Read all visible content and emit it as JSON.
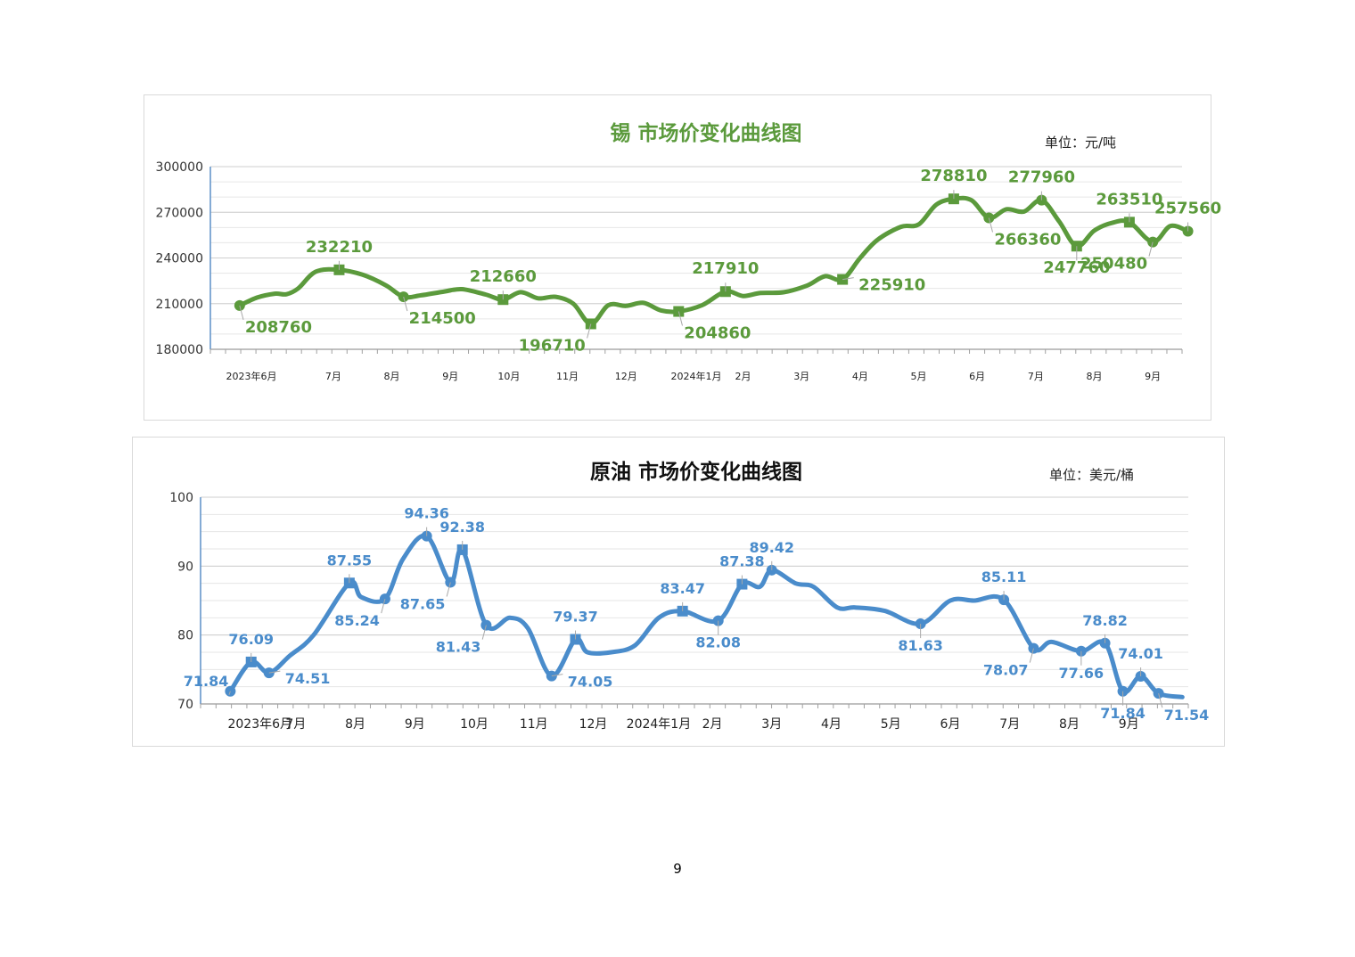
{
  "page": {
    "number": "9"
  },
  "chart_data": [
    {
      "type": "line",
      "title": "锡 市场价变化曲线图",
      "unit": "单位：元/吨",
      "color": "#5b9a3c",
      "ylim": [
        180000,
        300000
      ],
      "yticks": [
        "300000",
        "270000",
        "240000",
        "210000",
        "180000"
      ],
      "ytick_values": [
        300000,
        270000,
        240000,
        210000,
        180000
      ],
      "xtick_labels": [
        {
          "label": "2023年6月",
          "x": 0.7
        },
        {
          "label": "7月",
          "x": 2.1
        },
        {
          "label": "8月",
          "x": 3.1
        },
        {
          "label": "9月",
          "x": 4.1
        },
        {
          "label": "10月",
          "x": 5.1
        },
        {
          "label": "11月",
          "x": 6.1
        },
        {
          "label": "12月",
          "x": 7.1
        },
        {
          "label": "2024年1月",
          "x": 8.3
        },
        {
          "label": "2月",
          "x": 9.1
        },
        {
          "label": "3月",
          "x": 10.1
        },
        {
          "label": "4月",
          "x": 11.1
        },
        {
          "label": "5月",
          "x": 12.1
        },
        {
          "label": "6月",
          "x": 13.1
        },
        {
          "label": "7月",
          "x": 14.1
        },
        {
          "label": "8月",
          "x": 15.1
        },
        {
          "label": "9月",
          "x": 16.1
        }
      ],
      "x_range": [
        0,
        16.6
      ],
      "grid": true,
      "series": [
        {
          "x": [
            0.5,
            0.8,
            1.1,
            1.3,
            1.5,
            1.8,
            2.2,
            2.6,
            3.0,
            3.3,
            3.6,
            4.0,
            4.3,
            4.7,
            5.0,
            5.3,
            5.6,
            5.9,
            6.2,
            6.5,
            6.8,
            7.1,
            7.4,
            7.7,
            8.0,
            8.4,
            8.8,
            9.1,
            9.4,
            9.8,
            10.2,
            10.5,
            10.8,
            11.1,
            11.4,
            11.8,
            12.1,
            12.4,
            12.7,
            13.0,
            13.3,
            13.6,
            13.9,
            14.2,
            14.5,
            14.8,
            15.1,
            15.4,
            15.7,
            16.1,
            16.4,
            16.7
          ],
          "values": [
            208760,
            214000,
            216500,
            216200,
            220000,
            231000,
            232210,
            229000,
            222000,
            214500,
            215500,
            218000,
            219500,
            216000,
            212660,
            217500,
            213500,
            214500,
            210000,
            196710,
            209000,
            208500,
            210500,
            205500,
            204860,
            209000,
            217910,
            215000,
            217000,
            217500,
            222000,
            228000,
            225910,
            240000,
            252000,
            260500,
            262000,
            275000,
            278810,
            278000,
            266360,
            272000,
            270500,
            277960,
            264000,
            247760,
            258000,
            263000,
            263510,
            250480,
            261000,
            257560
          ],
          "markers": [
            {
              "x": 0.5,
              "y": 208760,
              "shape": "circle",
              "label": "208760",
              "anchor": "below-right"
            },
            {
              "x": 2.2,
              "y": 232210,
              "shape": "square",
              "label": "232210",
              "anchor": "above"
            },
            {
              "x": 3.3,
              "y": 214500,
              "shape": "circle",
              "label": "214500",
              "anchor": "below-right"
            },
            {
              "x": 5.0,
              "y": 212660,
              "shape": "square",
              "label": "212660",
              "anchor": "above"
            },
            {
              "x": 6.5,
              "y": 196710,
              "shape": "square",
              "label": "196710",
              "anchor": "below-left"
            },
            {
              "x": 8.0,
              "y": 204860,
              "shape": "square",
              "label": "204860",
              "anchor": "below-right"
            },
            {
              "x": 8.8,
              "y": 217910,
              "shape": "square",
              "label": "217910",
              "anchor": "above"
            },
            {
              "x": 10.8,
              "y": 225910,
              "shape": "square",
              "label": "225910",
              "anchor": "right"
            },
            {
              "x": 12.7,
              "y": 278810,
              "shape": "square",
              "label": "278810",
              "anchor": "above"
            },
            {
              "x": 13.3,
              "y": 266360,
              "shape": "circle",
              "label": "266360",
              "anchor": "below-right"
            },
            {
              "x": 14.2,
              "y": 277960,
              "shape": "circle",
              "label": "277960",
              "anchor": "above"
            },
            {
              "x": 14.8,
              "y": 247760,
              "shape": "square",
              "label": "247760",
              "anchor": "below"
            },
            {
              "x": 15.7,
              "y": 263510,
              "shape": "square",
              "label": "263510",
              "anchor": "above"
            },
            {
              "x": 16.1,
              "y": 250480,
              "shape": "circle",
              "label": "250480",
              "anchor": "below-left"
            },
            {
              "x": 16.7,
              "y": 257560,
              "shape": "circle",
              "label": "257560",
              "anchor": "above"
            }
          ]
        }
      ]
    },
    {
      "type": "line",
      "title": "原油 市场价变化曲线图",
      "unit": "单位：美元/桶",
      "color": "#4a8ccb",
      "ylim": [
        70,
        100
      ],
      "yticks": [
        "100",
        "90",
        "80",
        "70"
      ],
      "ytick_values": [
        100,
        90,
        80,
        70
      ],
      "xtick_labels": [
        {
          "label": "2023年6月",
          "x": 1.0
        },
        {
          "label": "7月",
          "x": 1.6
        },
        {
          "label": "8月",
          "x": 2.6
        },
        {
          "label": "9月",
          "x": 3.6
        },
        {
          "label": "10月",
          "x": 4.6
        },
        {
          "label": "11月",
          "x": 5.6
        },
        {
          "label": "12月",
          "x": 6.6
        },
        {
          "label": "2024年1月",
          "x": 7.7
        },
        {
          "label": "2月",
          "x": 8.6
        },
        {
          "label": "3月",
          "x": 9.6
        },
        {
          "label": "4月",
          "x": 10.6
        },
        {
          "label": "5月",
          "x": 11.6
        },
        {
          "label": "6月",
          "x": 12.6
        },
        {
          "label": "7月",
          "x": 13.6
        },
        {
          "label": "8月",
          "x": 14.6
        },
        {
          "label": "9月",
          "x": 15.6
        }
      ],
      "x_range": [
        0,
        16.6
      ],
      "grid": true,
      "series": [
        {
          "x": [
            0.5,
            0.85,
            1.15,
            1.5,
            1.9,
            2.5,
            2.7,
            3.1,
            3.4,
            3.8,
            4.2,
            4.4,
            4.8,
            5.2,
            5.5,
            5.9,
            6.3,
            6.5,
            6.9,
            7.3,
            7.7,
            8.1,
            8.7,
            9.1,
            9.4,
            9.6,
            10.0,
            10.3,
            10.7,
            11.0,
            11.5,
            12.1,
            12.6,
            13.0,
            13.5,
            14.0,
            14.3,
            14.8,
            15.2,
            15.5,
            15.8,
            16.1,
            16.5
          ],
          "values": [
            71.84,
            76.09,
            74.51,
            77.0,
            80.0,
            87.55,
            85.5,
            85.24,
            91.0,
            94.36,
            87.65,
            92.38,
            81.43,
            82.5,
            81.0,
            74.05,
            79.37,
            77.5,
            77.5,
            78.5,
            82.5,
            83.47,
            82.08,
            87.38,
            87.0,
            89.42,
            87.5,
            87.0,
            84.0,
            84.0,
            83.5,
            81.63,
            85.0,
            85.0,
            85.11,
            78.07,
            79.0,
            77.66,
            78.82,
            71.84,
            74.01,
            71.54,
            71.0
          ],
          "markers": [
            {
              "x": 0.5,
              "y": 71.84,
              "shape": "circle",
              "label": "71.84",
              "anchor": "above-left"
            },
            {
              "x": 0.85,
              "y": 76.09,
              "shape": "square",
              "label": "76.09",
              "anchor": "above"
            },
            {
              "x": 1.15,
              "y": 74.51,
              "shape": "circle",
              "label": "74.51",
              "anchor": "right"
            },
            {
              "x": 2.5,
              "y": 87.55,
              "shape": "square",
              "label": "87.55",
              "anchor": "above"
            },
            {
              "x": 3.1,
              "y": 85.24,
              "shape": "circle",
              "label": "85.24",
              "anchor": "below-left"
            },
            {
              "x": 3.8,
              "y": 94.36,
              "shape": "circle",
              "label": "94.36",
              "anchor": "above"
            },
            {
              "x": 4.2,
              "y": 87.65,
              "shape": "circle",
              "label": "87.65",
              "anchor": "below-left"
            },
            {
              "x": 4.4,
              "y": 92.38,
              "shape": "square",
              "label": "92.38",
              "anchor": "above"
            },
            {
              "x": 4.8,
              "y": 81.43,
              "shape": "circle",
              "label": "81.43",
              "anchor": "below-left"
            },
            {
              "x": 5.9,
              "y": 74.05,
              "shape": "circle",
              "label": "74.05",
              "anchor": "right"
            },
            {
              "x": 6.3,
              "y": 79.37,
              "shape": "square",
              "label": "79.37",
              "anchor": "above"
            },
            {
              "x": 8.1,
              "y": 83.47,
              "shape": "square",
              "label": "83.47",
              "anchor": "above"
            },
            {
              "x": 8.7,
              "y": 82.08,
              "shape": "circle",
              "label": "82.08",
              "anchor": "below"
            },
            {
              "x": 9.1,
              "y": 87.38,
              "shape": "square",
              "label": "87.38",
              "anchor": "above"
            },
            {
              "x": 9.6,
              "y": 89.42,
              "shape": "circle",
              "label": "89.42",
              "anchor": "above"
            },
            {
              "x": 12.1,
              "y": 81.63,
              "shape": "circle",
              "label": "81.63",
              "anchor": "below"
            },
            {
              "x": 13.5,
              "y": 85.11,
              "shape": "circle",
              "label": "85.11",
              "anchor": "above"
            },
            {
              "x": 14.0,
              "y": 78.07,
              "shape": "circle",
              "label": "78.07",
              "anchor": "below-left"
            },
            {
              "x": 14.8,
              "y": 77.66,
              "shape": "circle",
              "label": "77.66",
              "anchor": "below"
            },
            {
              "x": 15.2,
              "y": 78.82,
              "shape": "circle",
              "label": "78.82",
              "anchor": "above"
            },
            {
              "x": 15.5,
              "y": 71.84,
              "shape": "circle",
              "label": "71.84",
              "anchor": "below"
            },
            {
              "x": 15.8,
              "y": 74.01,
              "shape": "circle",
              "label": "74.01",
              "anchor": "above"
            },
            {
              "x": 16.1,
              "y": 71.54,
              "shape": "circle",
              "label": "71.54",
              "anchor": "below-right"
            }
          ]
        }
      ]
    }
  ]
}
